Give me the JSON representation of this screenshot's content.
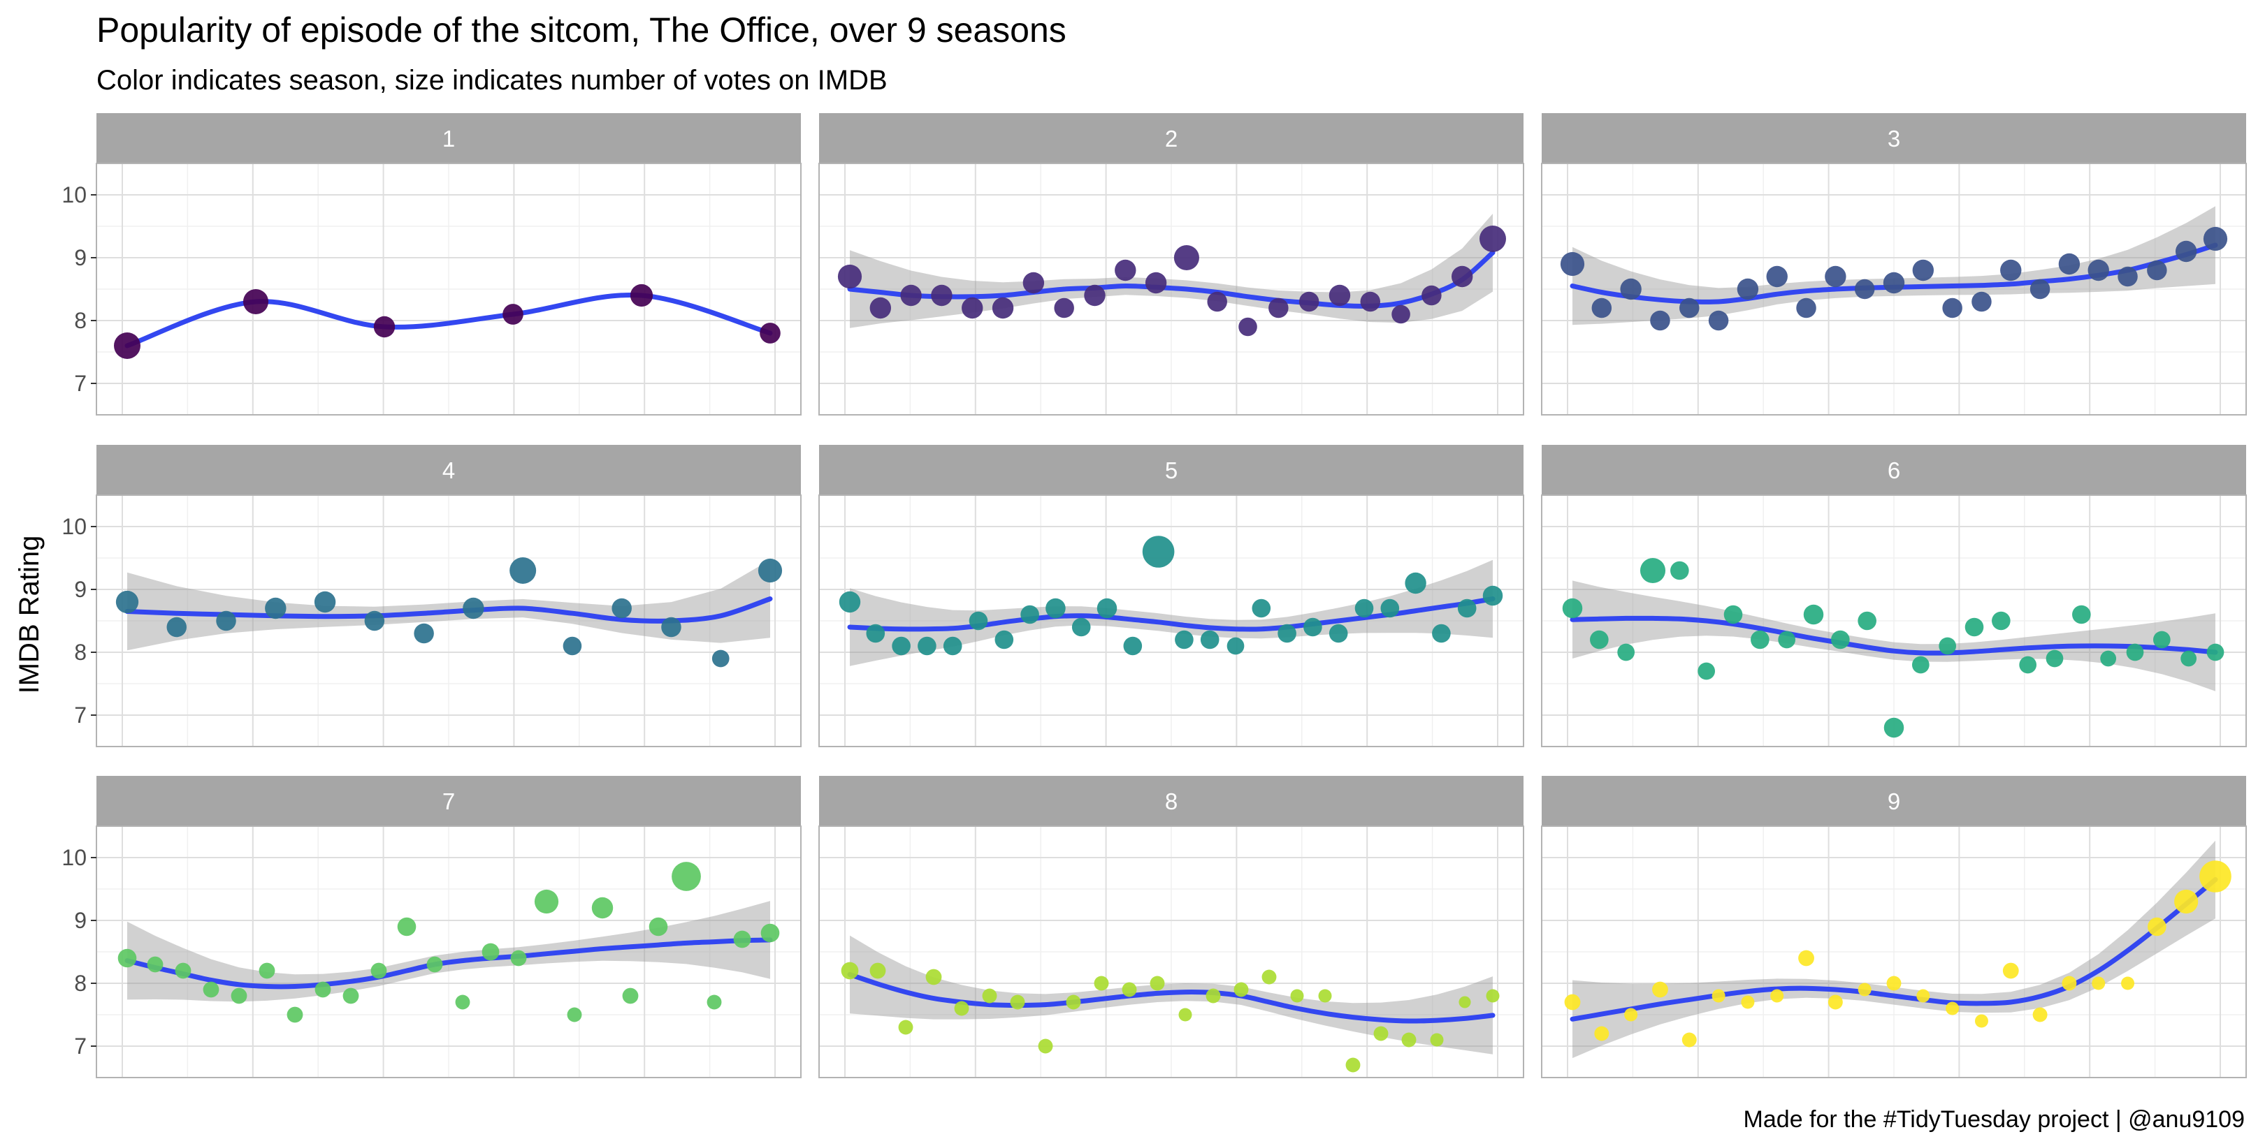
{
  "chart_data": {
    "type": "scatter",
    "title": "Popularity of episode of the sitcom, The Office, over 9 seasons",
    "subtitle": "Color indicates season, size indicates number of votes on IMDB",
    "ylabel": "IMDB Rating",
    "xlabel": "",
    "caption": "Made for the #TidyTuesday project | @anu9109",
    "ylim": [
      6.5,
      10.5
    ],
    "yticks": [
      7,
      8,
      9,
      10
    ],
    "grid": true,
    "legend": "none",
    "facet_by": "season",
    "facet_layout": {
      "rows": 3,
      "cols": 3
    },
    "panels": [
      {
        "season": "1",
        "color": "#440154",
        "ratings": [
          7.6,
          8.3,
          7.9,
          8.1,
          8.4,
          7.8
        ],
        "votes_rel": [
          1.0,
          0.95,
          0.8,
          0.78,
          0.85,
          0.78
        ],
        "smooth": [
          7.6,
          8.3,
          7.9,
          8.1,
          8.4,
          7.8
        ],
        "band": false
      },
      {
        "season": "2",
        "color": "#472D7B",
        "ratings": [
          8.7,
          8.2,
          8.4,
          8.4,
          8.2,
          8.2,
          8.6,
          8.2,
          8.4,
          8.8,
          8.6,
          9.0,
          8.3,
          7.9,
          8.2,
          8.3,
          8.4,
          8.3,
          8.1,
          8.4,
          8.7,
          9.3
        ],
        "votes_rel": [
          0.9,
          0.8,
          0.8,
          0.8,
          0.8,
          0.8,
          0.8,
          0.75,
          0.8,
          0.8,
          0.8,
          0.95,
          0.75,
          0.7,
          0.75,
          0.75,
          0.8,
          0.75,
          0.7,
          0.75,
          0.8,
          1.0
        ],
        "smooth": [
          8.5,
          8.45,
          8.4,
          8.38,
          8.38,
          8.4,
          8.45,
          8.5,
          8.52,
          8.55,
          8.53,
          8.5,
          8.45,
          8.38,
          8.32,
          8.28,
          8.24,
          8.23,
          8.28,
          8.42,
          8.65,
          9.08
        ],
        "band": true
      },
      {
        "season": "3",
        "color": "#3B528B",
        "ratings": [
          8.9,
          8.2,
          8.5,
          8.0,
          8.2,
          8.0,
          8.5,
          8.7,
          8.2,
          8.7,
          8.5,
          8.6,
          8.8,
          8.2,
          8.3,
          8.8,
          8.5,
          8.9,
          8.8,
          8.7,
          8.8,
          9.1,
          9.3
        ],
        "votes_rel": [
          0.9,
          0.75,
          0.8,
          0.75,
          0.75,
          0.75,
          0.8,
          0.8,
          0.75,
          0.8,
          0.75,
          0.8,
          0.8,
          0.75,
          0.75,
          0.8,
          0.75,
          0.8,
          0.8,
          0.75,
          0.75,
          0.8,
          0.9
        ],
        "smooth": [
          8.55,
          8.45,
          8.38,
          8.33,
          8.3,
          8.3,
          8.35,
          8.42,
          8.47,
          8.5,
          8.52,
          8.53,
          8.54,
          8.55,
          8.56,
          8.58,
          8.62,
          8.66,
          8.72,
          8.8,
          8.92,
          9.05,
          9.2
        ],
        "band": true
      },
      {
        "season": "4",
        "color": "#2C728E",
        "ratings": [
          8.8,
          8.4,
          8.5,
          8.7,
          8.8,
          8.5,
          8.3,
          8.7,
          9.3,
          8.1,
          8.7,
          8.4,
          7.9,
          9.3
        ],
        "votes_rel": [
          0.85,
          0.75,
          0.75,
          0.8,
          0.8,
          0.75,
          0.75,
          0.8,
          1.0,
          0.7,
          0.75,
          0.75,
          0.65,
          0.9
        ],
        "smooth": [
          8.65,
          8.62,
          8.6,
          8.58,
          8.57,
          8.58,
          8.62,
          8.67,
          8.7,
          8.62,
          8.52,
          8.5,
          8.58,
          8.85
        ],
        "band": true
      },
      {
        "season": "5",
        "color": "#21908C",
        "ratings": [
          8.8,
          8.3,
          8.1,
          8.1,
          8.1,
          8.5,
          8.2,
          8.6,
          8.7,
          8.4,
          8.7,
          8.1,
          9.6,
          8.2,
          8.2,
          8.1,
          8.7,
          8.3,
          8.4,
          8.3,
          8.7,
          8.7,
          9.1,
          8.3,
          8.7,
          8.9
        ],
        "votes_rel": [
          0.8,
          0.7,
          0.7,
          0.7,
          0.7,
          0.7,
          0.7,
          0.7,
          0.75,
          0.7,
          0.75,
          0.7,
          1.2,
          0.7,
          0.7,
          0.65,
          0.7,
          0.7,
          0.7,
          0.7,
          0.7,
          0.7,
          0.8,
          0.7,
          0.7,
          0.75
        ],
        "smooth": [
          8.4,
          8.38,
          8.37,
          8.37,
          8.38,
          8.42,
          8.48,
          8.53,
          8.57,
          8.58,
          8.56,
          8.52,
          8.48,
          8.43,
          8.39,
          8.37,
          8.37,
          8.4,
          8.45,
          8.5,
          8.55,
          8.6,
          8.66,
          8.72,
          8.78,
          8.85
        ],
        "band": true
      },
      {
        "season": "6",
        "color": "#27AD81",
        "ratings": [
          8.7,
          8.2,
          8.0,
          9.3,
          9.3,
          7.7,
          8.6,
          8.2,
          8.2,
          8.6,
          8.2,
          8.5,
          6.8,
          7.8,
          8.1,
          8.4,
          8.5,
          7.8,
          7.9,
          8.6,
          7.9,
          8.0,
          8.2,
          7.9,
          8.0
        ],
        "votes_rel": [
          0.75,
          0.7,
          0.65,
          0.95,
          0.7,
          0.65,
          0.7,
          0.7,
          0.65,
          0.75,
          0.7,
          0.7,
          0.75,
          0.65,
          0.65,
          0.7,
          0.7,
          0.65,
          0.65,
          0.7,
          0.6,
          0.65,
          0.65,
          0.6,
          0.65
        ],
        "smooth": [
          8.52,
          8.53,
          8.54,
          8.54,
          8.53,
          8.5,
          8.45,
          8.38,
          8.3,
          8.22,
          8.15,
          8.08,
          8.02,
          7.99,
          7.99,
          8.01,
          8.04,
          8.07,
          8.09,
          8.1,
          8.1,
          8.09,
          8.07,
          8.04,
          8.0
        ],
        "band": true
      },
      {
        "season": "7",
        "color": "#5DC863",
        "ratings": [
          8.4,
          8.3,
          8.2,
          7.9,
          7.8,
          8.2,
          7.5,
          7.9,
          7.8,
          8.2,
          8.9,
          8.3,
          7.7,
          8.5,
          8.4,
          9.3,
          7.5,
          9.2,
          7.8,
          8.9,
          9.7,
          7.7,
          8.7,
          8.8
        ],
        "votes_rel": [
          0.7,
          0.6,
          0.6,
          0.6,
          0.6,
          0.6,
          0.6,
          0.6,
          0.6,
          0.6,
          0.7,
          0.6,
          0.55,
          0.65,
          0.6,
          0.9,
          0.55,
          0.8,
          0.6,
          0.7,
          1.1,
          0.55,
          0.65,
          0.7
        ],
        "smooth": [
          8.36,
          8.25,
          8.15,
          8.05,
          7.98,
          7.95,
          7.95,
          7.98,
          8.03,
          8.1,
          8.2,
          8.3,
          8.36,
          8.4,
          8.43,
          8.47,
          8.51,
          8.55,
          8.58,
          8.61,
          8.64,
          8.66,
          8.68,
          8.69
        ],
        "band": true
      },
      {
        "season": "8",
        "color": "#AADC32",
        "ratings": [
          8.2,
          8.2,
          7.3,
          8.1,
          7.6,
          7.8,
          7.7,
          7.0,
          7.7,
          8.0,
          7.9,
          8.0,
          7.5,
          7.8,
          7.9,
          8.1,
          7.8,
          7.8,
          6.7,
          7.2,
          7.1,
          7.1,
          7.7,
          7.8
        ],
        "votes_rel": [
          0.65,
          0.6,
          0.55,
          0.6,
          0.55,
          0.55,
          0.55,
          0.55,
          0.55,
          0.55,
          0.55,
          0.55,
          0.5,
          0.55,
          0.55,
          0.55,
          0.5,
          0.5,
          0.55,
          0.55,
          0.55,
          0.5,
          0.45,
          0.5
        ],
        "smooth": [
          8.14,
          7.99,
          7.86,
          7.76,
          7.7,
          7.66,
          7.65,
          7.66,
          7.7,
          7.75,
          7.8,
          7.84,
          7.86,
          7.85,
          7.8,
          7.7,
          7.6,
          7.52,
          7.46,
          7.42,
          7.4,
          7.41,
          7.44,
          7.49
        ],
        "band": true
      },
      {
        "season": "9",
        "color": "#FDE725",
        "ratings": [
          7.7,
          7.2,
          7.5,
          7.9,
          7.1,
          7.8,
          7.7,
          7.8,
          8.4,
          7.7,
          7.9,
          8.0,
          7.8,
          7.6,
          7.4,
          8.2,
          7.5,
          8.0,
          8.0,
          8.0,
          8.9,
          9.3,
          9.7
        ],
        "votes_rel": [
          0.6,
          0.55,
          0.5,
          0.6,
          0.55,
          0.5,
          0.5,
          0.5,
          0.6,
          0.55,
          0.5,
          0.55,
          0.5,
          0.5,
          0.5,
          0.6,
          0.55,
          0.55,
          0.5,
          0.5,
          0.7,
          0.9,
          1.2
        ],
        "smooth": [
          7.43,
          7.51,
          7.59,
          7.67,
          7.74,
          7.81,
          7.87,
          7.91,
          7.92,
          7.9,
          7.86,
          7.8,
          7.74,
          7.69,
          7.68,
          7.7,
          7.79,
          7.95,
          8.2,
          8.52,
          8.88,
          9.26,
          9.65
        ],
        "band": true
      }
    ]
  }
}
